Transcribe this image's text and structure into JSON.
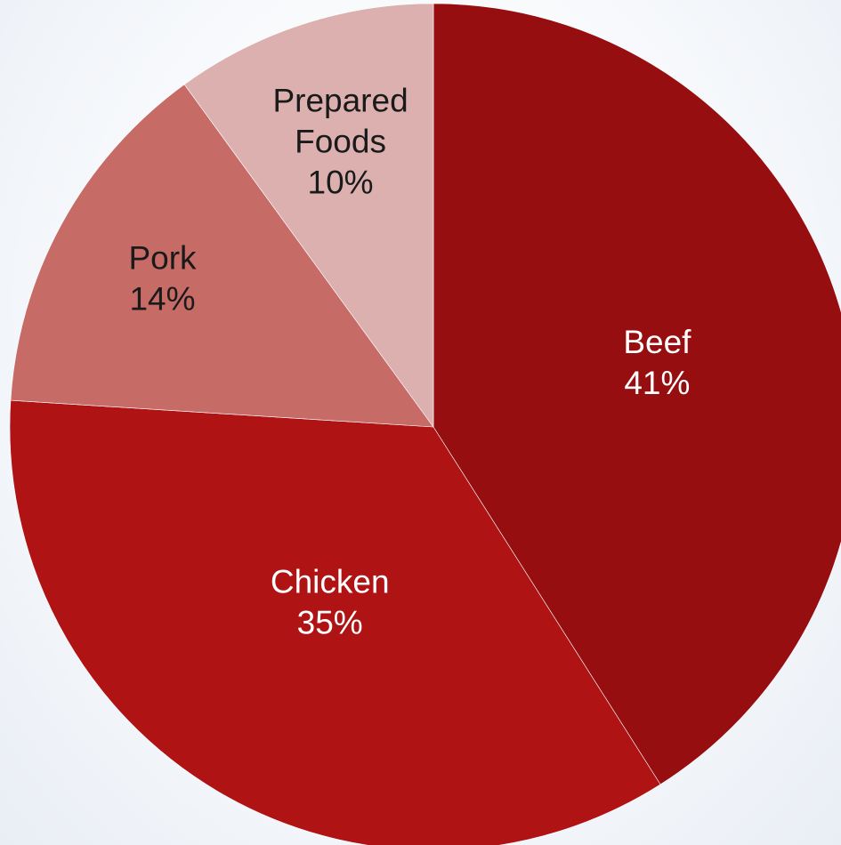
{
  "chart_data": {
    "type": "pie",
    "slices": [
      {
        "name": "Beef",
        "value": 41,
        "label": "41%",
        "color": "#960e10",
        "text_color": "#ffffff"
      },
      {
        "name": "Chicken",
        "value": 35,
        "label": "35%",
        "color": "#af1314",
        "text_color": "#ffffff"
      },
      {
        "name": "Pork",
        "value": 14,
        "label": "14%",
        "color": "#c76b67",
        "text_color": "#1a1a1a"
      },
      {
        "name": "Prepared Foods",
        "value": 10,
        "label": "10%",
        "color": "#ddb0b0",
        "text_color": "#1a1a1a"
      }
    ],
    "start_angle": "12 o'clock",
    "direction": "clockwise",
    "legend": "none"
  }
}
